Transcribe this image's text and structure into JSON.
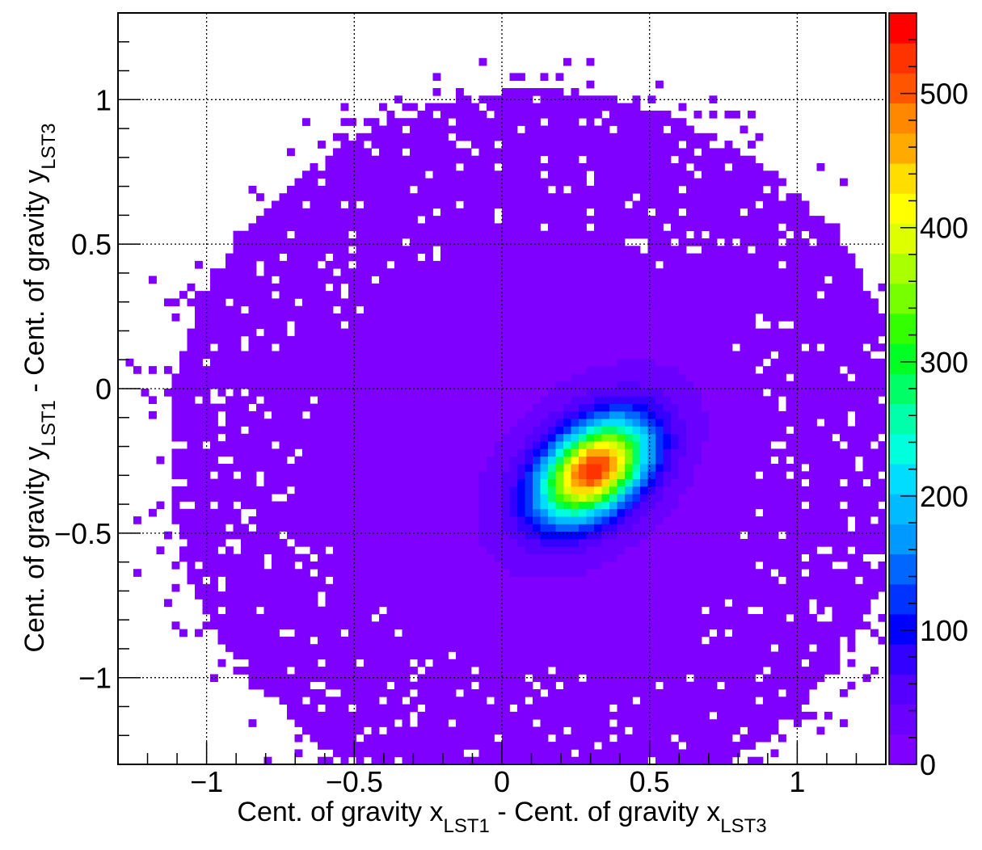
{
  "chart_data": {
    "type": "heatmap",
    "title": "",
    "xlabel": {
      "pre": "Cent. of gravity x",
      "sub1": "LST1",
      "mid": " - Cent. of gravity x",
      "sub2": "LST3"
    },
    "ylabel": {
      "pre": "Cent. of gravity y",
      "sub1": "LST1",
      "mid": " - Cent. of gravity y",
      "sub2": "LST3"
    },
    "xlim": [
      -1.3,
      1.3
    ],
    "ylim": [
      -1.3,
      1.3
    ],
    "zlim": [
      0,
      560
    ],
    "x_ticks": [
      -1,
      -0.5,
      0,
      0.5,
      1
    ],
    "x_tick_labels": [
      "−1",
      "−0.5",
      "0",
      "0.5",
      "1"
    ],
    "y_ticks": [
      -1,
      -0.5,
      0,
      0.5,
      1
    ],
    "y_tick_labels": [
      "−1",
      "−0.5",
      "0",
      "0.5",
      "1"
    ],
    "z_ticks": [
      0,
      100,
      200,
      300,
      400,
      500
    ],
    "z_tick_labels": [
      "0",
      "100",
      "200",
      "300",
      "400",
      "500"
    ],
    "grid": true,
    "colorbar": "right",
    "bins": {
      "nx": 100,
      "ny": 100
    },
    "distribution": {
      "peak_position": [
        0.31,
        -0.28
      ],
      "peak_count": 550,
      "core_sigma": [
        0.09,
        0.14
      ],
      "core_angle_deg": -50,
      "core_amplitude": 480,
      "mid_sigma": [
        0.19,
        0.3
      ],
      "mid_angle_deg": -45,
      "mid_amplitude": 45,
      "halo_center": [
        0.12,
        -0.22
      ],
      "halo_radius": 0.52,
      "halo_amplitude": 9
    },
    "palette": [
      "#7f00ff",
      "#6a00ff",
      "#5500ff",
      "#3300ff",
      "#0000ff",
      "#0033ff",
      "#0066ff",
      "#0099ff",
      "#00bbff",
      "#00ddff",
      "#00ffdd",
      "#00ffaa",
      "#00ff66",
      "#00ff22",
      "#33ff00",
      "#77ff00",
      "#aaff00",
      "#ddff00",
      "#ffff00",
      "#ffdd00",
      "#ffaa00",
      "#ff8800",
      "#ff5500",
      "#ff3300",
      "#ff0000"
    ]
  }
}
